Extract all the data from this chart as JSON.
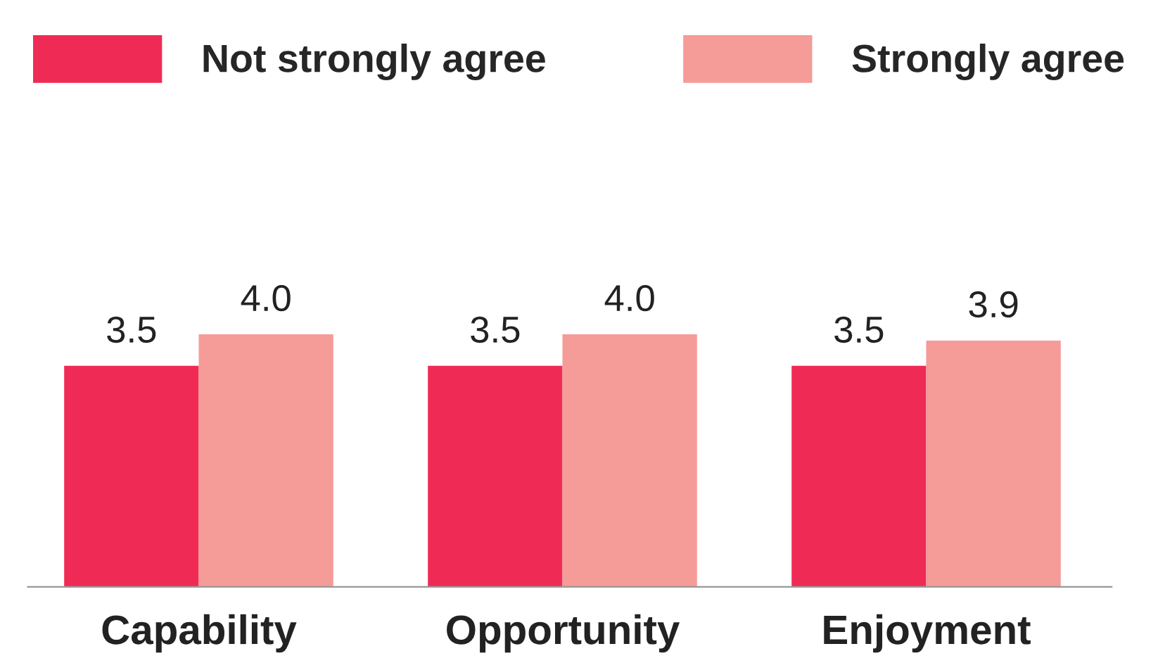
{
  "chart_data": {
    "type": "bar",
    "categories": [
      "Capability",
      "Opportunity",
      "Enjoyment"
    ],
    "series": [
      {
        "name": "Not strongly agree",
        "color": "#ef2b55",
        "values": [
          3.5,
          3.5,
          3.5
        ],
        "value_labels": [
          "3.5",
          "3.5",
          "3.5"
        ]
      },
      {
        "name": "Strongly agree",
        "color": "#f59b98",
        "values": [
          4.0,
          4.0,
          3.9
        ],
        "value_labels": [
          "4.0",
          "4.0",
          "3.9"
        ]
      }
    ],
    "legend": "top",
    "grid": false
  }
}
